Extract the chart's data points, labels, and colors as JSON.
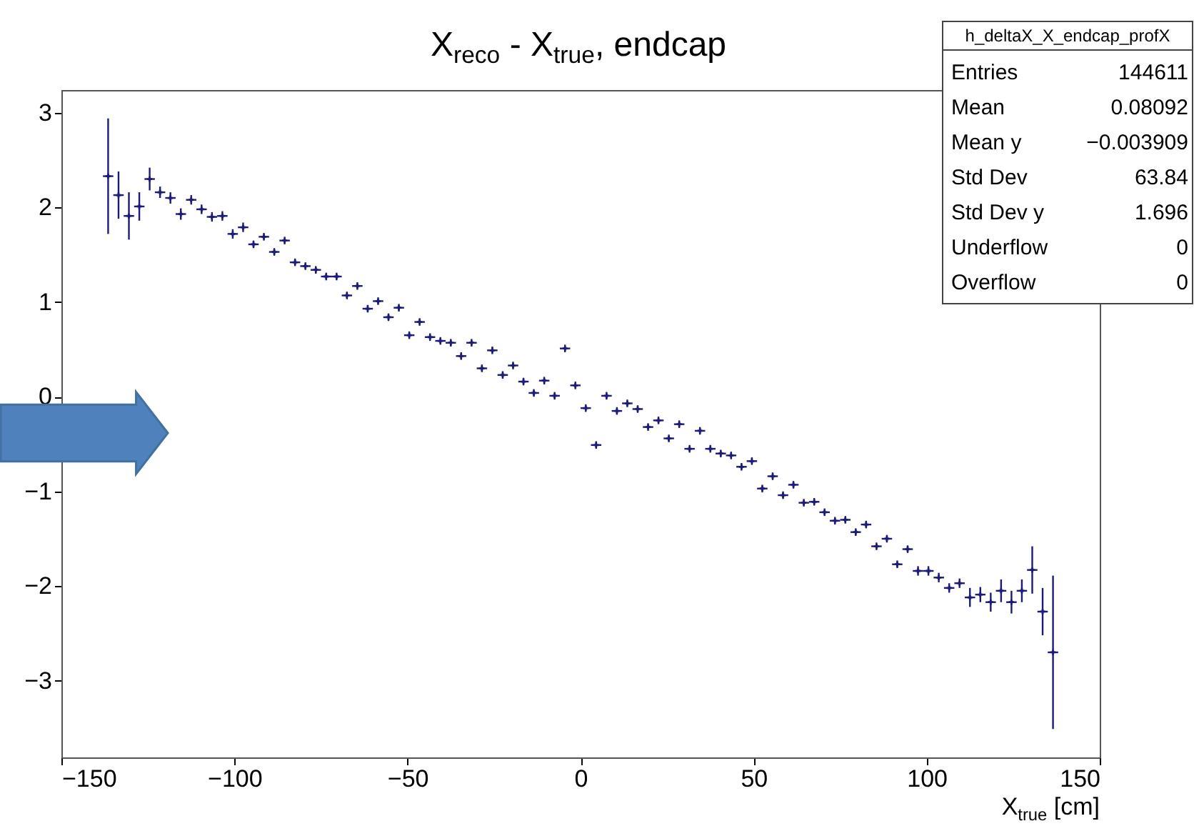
{
  "chart_data": {
    "type": "scatter",
    "title": "X$_{reco}$ - X$_{true}$, endcap",
    "xlabel": "X$_{true}$ [cm]",
    "x": [
      -136.5,
      -133.5,
      -130.5,
      -127.5,
      -124.5,
      -121.5,
      -118.5,
      -115.5,
      -112.5,
      -109.5,
      -106.5,
      -103.5,
      -100.5,
      -97.5,
      -94.5,
      -91.5,
      -88.5,
      -85.5,
      -82.5,
      -79.5,
      -76.5,
      -73.5,
      -70.5,
      -67.5,
      -64.5,
      -61.5,
      -58.5,
      -55.5,
      -52.5,
      -49.5,
      -46.5,
      -43.5,
      -40.5,
      -37.5,
      -34.5,
      -31.5,
      -28.5,
      -25.5,
      -22.5,
      -19.5,
      -16.5,
      -13.5,
      -10.5,
      -7.5,
      -4.5,
      -1.5,
      1.5,
      4.5,
      7.5,
      10.5,
      13.5,
      16.5,
      19.5,
      22.5,
      25.5,
      28.5,
      31.5,
      34.5,
      37.5,
      40.5,
      43.5,
      46.5,
      49.5,
      52.5,
      55.5,
      58.5,
      61.5,
      64.5,
      67.5,
      70.5,
      73.5,
      76.5,
      79.5,
      82.5,
      85.5,
      88.5,
      91.5,
      94.5,
      97.5,
      100.5,
      103.5,
      106.5,
      109.5,
      112.5,
      115.5,
      118.5,
      121.5,
      124.5,
      127.5,
      130.5,
      133.5,
      136.5
    ],
    "series": [
      {
        "color": "#1c1c78",
        "values": [
          2.33,
          2.13,
          1.91,
          2.01,
          2.3,
          2.16,
          2.1,
          1.93,
          2.08,
          1.98,
          1.9,
          1.91,
          1.72,
          1.79,
          1.61,
          1.69,
          1.53,
          1.65,
          1.42,
          1.38,
          1.34,
          1.27,
          1.27,
          1.07,
          1.17,
          0.93,
          1.01,
          0.84,
          0.94,
          0.65,
          0.79,
          0.63,
          0.59,
          0.57,
          0.43,
          0.57,
          0.3,
          0.49,
          0.23,
          0.33,
          0.16,
          0.04,
          0.17,
          0.01,
          0.51,
          0.12,
          -0.12,
          -0.51,
          0.01,
          -0.15,
          -0.07,
          -0.13,
          -0.32,
          -0.25,
          -0.44,
          -0.29,
          -0.55,
          -0.36,
          -0.55,
          -0.6,
          -0.62,
          -0.74,
          -0.68,
          -0.97,
          -0.84,
          -1.04,
          -0.93,
          -1.12,
          -1.11,
          -1.22,
          -1.31,
          -1.3,
          -1.43,
          -1.35,
          -1.58,
          -1.5,
          -1.77,
          -1.61,
          -1.84,
          -1.84,
          -1.91,
          -2.02,
          -1.97,
          -2.12,
          -2.09,
          -2.17,
          -2.05,
          -2.17,
          -2.05,
          -1.83,
          -2.27,
          -2.7
        ],
        "errors": [
          0.61,
          0.25,
          0.25,
          0.15,
          0.12,
          0.06,
          0.06,
          0.06,
          0.05,
          0.05,
          0.05,
          0.05,
          0.05,
          0.05,
          0.04,
          0.04,
          0.04,
          0.04,
          0.04,
          0.04,
          0.04,
          0.04,
          0.04,
          0.04,
          0.04,
          0.04,
          0.04,
          0.04,
          0.04,
          0.04,
          0.04,
          0.04,
          0.04,
          0.04,
          0.04,
          0.04,
          0.04,
          0.04,
          0.04,
          0.04,
          0.04,
          0.04,
          0.04,
          0.04,
          0.04,
          0.04,
          0.04,
          0.04,
          0.04,
          0.04,
          0.04,
          0.04,
          0.04,
          0.04,
          0.04,
          0.04,
          0.04,
          0.04,
          0.04,
          0.04,
          0.04,
          0.04,
          0.04,
          0.04,
          0.04,
          0.04,
          0.04,
          0.04,
          0.04,
          0.04,
          0.04,
          0.04,
          0.04,
          0.04,
          0.04,
          0.04,
          0.04,
          0.04,
          0.05,
          0.05,
          0.05,
          0.05,
          0.05,
          0.1,
          0.08,
          0.1,
          0.12,
          0.12,
          0.12,
          0.25,
          0.25,
          0.81
        ],
        "xerrors": [
          1.5,
          1.5,
          1.5,
          1.5,
          1.5,
          1.5,
          1.5,
          1.5,
          1.5,
          1.5,
          1.5,
          1.5,
          1.5,
          1.5,
          1.5,
          1.5,
          1.5,
          1.5,
          1.5,
          1.5,
          1.5,
          1.5,
          1.5,
          1.5,
          1.5,
          1.5,
          1.5,
          1.5,
          1.5,
          1.5,
          1.5,
          1.5,
          1.5,
          1.5,
          1.5,
          1.5,
          1.5,
          1.5,
          1.5,
          1.5,
          1.5,
          1.5,
          1.5,
          1.5,
          1.5,
          1.5,
          1.5,
          1.5,
          1.5,
          1.5,
          1.5,
          1.5,
          1.5,
          1.5,
          1.5,
          1.5,
          1.5,
          1.5,
          1.5,
          1.5,
          1.5,
          1.5,
          1.5,
          1.5,
          1.5,
          1.5,
          1.5,
          1.5,
          1.5,
          1.5,
          1.5,
          1.5,
          1.5,
          1.5,
          1.5,
          1.5,
          1.5,
          1.5,
          1.5,
          1.5,
          1.5,
          1.5,
          1.5,
          1.5,
          1.5,
          1.5,
          1.5,
          1.5,
          1.5,
          1.5,
          1.5,
          1.5
        ]
      }
    ],
    "xlim": [
      -150,
      150
    ],
    "ylim": [
      -3.81,
      3.24
    ],
    "xticks": [
      -150,
      -100,
      -50,
      0,
      50,
      100,
      150
    ],
    "yticks": [
      -3,
      -2,
      -1,
      0,
      1,
      2,
      3
    ],
    "marker": "cross",
    "annotations": [
      "h_deltaX_X_endcap_profX",
      "Entries",
      "144611",
      "Mean",
      "0.08092",
      "Mean y",
      "−0.003909",
      "Std Dev",
      "63.84",
      "Std Dev y",
      "1.696",
      "Underflow",
      "0",
      "Overflow",
      "0"
    ]
  }
}
